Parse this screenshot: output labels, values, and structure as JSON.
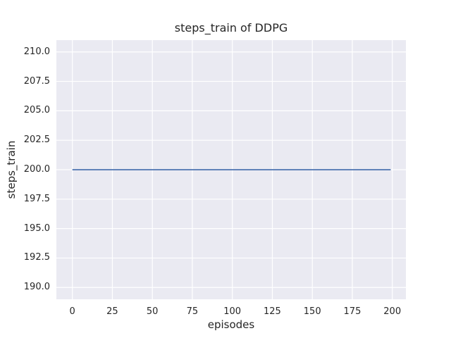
{
  "figure": {
    "background": "#ffffff",
    "text_color": "#262626"
  },
  "chart_data": {
    "type": "line",
    "title": "steps_train of DDPG",
    "xlabel": "episodes",
    "ylabel": "steps_train",
    "x_ticks": [
      0,
      25,
      50,
      75,
      100,
      125,
      150,
      175,
      200
    ],
    "x_tick_labels": [
      "0",
      "25",
      "50",
      "75",
      "100",
      "125",
      "150",
      "175",
      "200"
    ],
    "y_ticks": [
      190,
      192.5,
      195,
      197.5,
      200,
      202.5,
      205,
      207.5,
      210
    ],
    "y_tick_labels": [
      "190.0",
      "192.5",
      "195.0",
      "197.5",
      "200.0",
      "202.5",
      "205.0",
      "207.5",
      "210.0"
    ],
    "xlim": [
      -10,
      208.5
    ],
    "ylim": [
      189,
      211
    ],
    "grid": true,
    "legend": null,
    "plot_bg": "#eaeaf2",
    "grid_color": "#ffffff",
    "series": [
      {
        "name": "steps_train",
        "color": "#4c72b0",
        "line_width": 1.8,
        "x": [
          0,
          199
        ],
        "y": [
          200,
          200
        ],
        "description": "constant value 200 for every episode from 0 to 199"
      }
    ]
  }
}
